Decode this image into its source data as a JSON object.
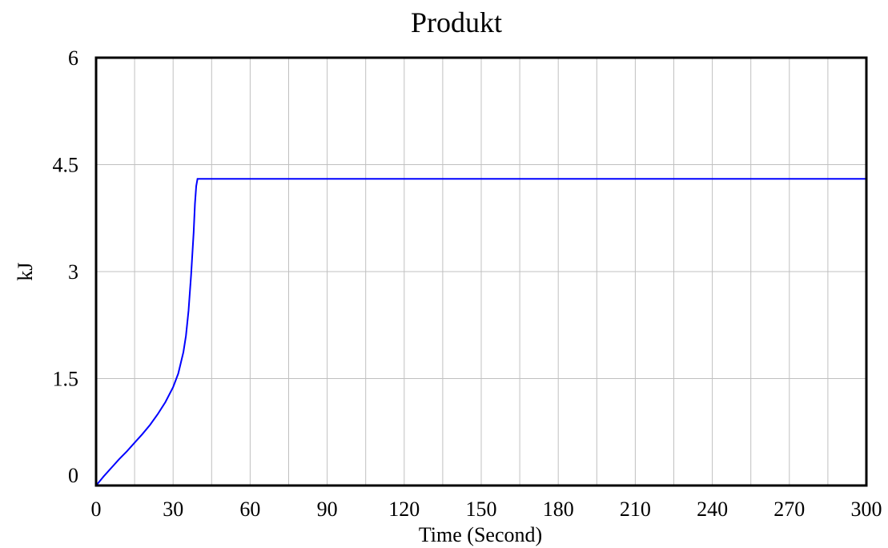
{
  "chart_data": {
    "type": "line",
    "title": "Produkt",
    "xlabel": "Time (Second)",
    "ylabel": "kJ",
    "xlim": [
      0,
      300
    ],
    "ylim": [
      0,
      6
    ],
    "x_ticks": [
      "0",
      "30",
      "60",
      "90",
      "120",
      "150",
      "180",
      "210",
      "240",
      "270",
      "300"
    ],
    "y_ticks": [
      "0",
      "1.5",
      "3",
      "4.5",
      "6"
    ],
    "grid": true,
    "legend": "none",
    "line_color": "#0000ff",
    "series": [
      {
        "x": [
          0,
          3,
          6,
          9,
          12,
          15,
          18,
          21,
          24,
          27,
          30,
          32,
          34,
          35,
          36,
          37,
          38,
          38.5,
          39,
          39.5,
          40,
          41,
          45,
          60,
          90,
          120,
          150,
          180,
          210,
          240,
          270,
          300
        ],
        "y": [
          0,
          0.13,
          0.25,
          0.37,
          0.48,
          0.6,
          0.72,
          0.85,
          1.0,
          1.17,
          1.38,
          1.57,
          1.87,
          2.1,
          2.45,
          2.95,
          3.55,
          3.95,
          4.2,
          4.3,
          4.3,
          4.3,
          4.3,
          4.3,
          4.3,
          4.3,
          4.3,
          4.3,
          4.3,
          4.3,
          4.3,
          4.3
        ]
      }
    ]
  }
}
